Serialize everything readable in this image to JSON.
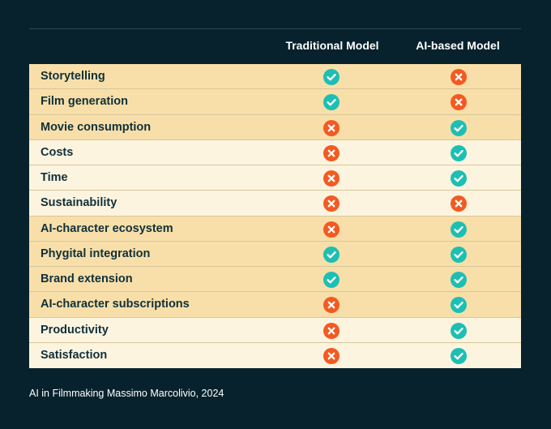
{
  "header": {
    "col_traditional": "Traditional Model",
    "col_ai": "AI-based Model"
  },
  "colors": {
    "background": "#07222d",
    "row_dark": "#f8dfa9",
    "row_light": "#fdf4e0",
    "check": "#1dbfb3",
    "cross": "#f35a22"
  },
  "rows": [
    {
      "label": "Storytelling",
      "traditional": "check-icon",
      "ai": "cross-icon",
      "shade": "dark"
    },
    {
      "label": "Film generation",
      "traditional": "check-icon",
      "ai": "cross-icon",
      "shade": "dark"
    },
    {
      "label": "Movie consumption",
      "traditional": "cross-icon",
      "ai": "check-icon",
      "shade": "dark"
    },
    {
      "label": "Costs",
      "traditional": "cross-icon",
      "ai": "check-icon",
      "shade": "light"
    },
    {
      "label": "Time",
      "traditional": "cross-icon",
      "ai": "check-icon",
      "shade": "light"
    },
    {
      "label": "Sustainability",
      "traditional": "cross-icon",
      "ai": "cross-icon",
      "shade": "light"
    },
    {
      "label": "AI-character ecosystem",
      "traditional": "cross-icon",
      "ai": "check-icon",
      "shade": "dark"
    },
    {
      "label": "Phygital integration",
      "traditional": "check-icon",
      "ai": "check-icon",
      "shade": "dark"
    },
    {
      "label": "Brand extension",
      "traditional": "check-icon",
      "ai": "check-icon",
      "shade": "dark"
    },
    {
      "label": "AI-character subscriptions",
      "traditional": "cross-icon",
      "ai": "check-icon",
      "shade": "dark"
    },
    {
      "label": "Productivity",
      "traditional": "cross-icon",
      "ai": "check-icon",
      "shade": "light"
    },
    {
      "label": "Satisfaction",
      "traditional": "cross-icon",
      "ai": "check-icon",
      "shade": "light"
    }
  ],
  "caption": "AI in Filmmaking Massimo Marcolivio, 2024"
}
